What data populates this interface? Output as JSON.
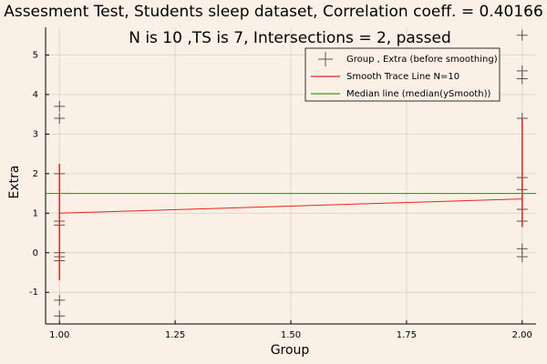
{
  "chart_data": {
    "type": "scatter",
    "title": "Assesment Test, Students sleep dataset, Correlation coeff. = 0.40166",
    "subtitle": "N is 10 ,TS is 7, Intersections = 2, passed",
    "x_label": "Group",
    "y_label": "Extra",
    "xlim": [
      0.97,
      2.03
    ],
    "ylim": [
      -1.8,
      5.7
    ],
    "xticks": [
      {
        "value": 1.0,
        "label": "1.00"
      },
      {
        "value": 1.25,
        "label": "1.25"
      },
      {
        "value": 1.5,
        "label": "1.50"
      },
      {
        "value": 1.75,
        "label": "1.75"
      },
      {
        "value": 2.0,
        "label": "2.00"
      }
    ],
    "yticks": [
      -1,
      0,
      1,
      2,
      3,
      4,
      5
    ],
    "grid": true,
    "legend": "top-right",
    "series": [
      {
        "name": "Group , Extra (before smoothing)",
        "color": "#555555",
        "kind": "points",
        "x": [
          1,
          1,
          1,
          1,
          1,
          1,
          1,
          1,
          1,
          1,
          2,
          2,
          2,
          2,
          2,
          2,
          2,
          2,
          2,
          2
        ],
        "values": [
          0.7,
          -1.6,
          -0.2,
          -1.2,
          -0.1,
          3.4,
          3.7,
          0.8,
          0.0,
          2.0,
          1.9,
          0.8,
          1.1,
          0.1,
          -0.1,
          4.4,
          5.5,
          1.6,
          4.6,
          3.4
        ]
      },
      {
        "name": "Smooth Trace Line N=10",
        "color": "#e8251f",
        "kind": "line",
        "x": [
          1,
          2
        ],
        "values": [
          1.0,
          1.36
        ],
        "low": [
          -0.7,
          0.65
        ],
        "high": [
          2.25,
          3.4
        ]
      },
      {
        "name": "Median line (median(ySmooth))",
        "color": "#3a9a26",
        "kind": "hline",
        "values": [
          1.5
        ]
      }
    ]
  }
}
